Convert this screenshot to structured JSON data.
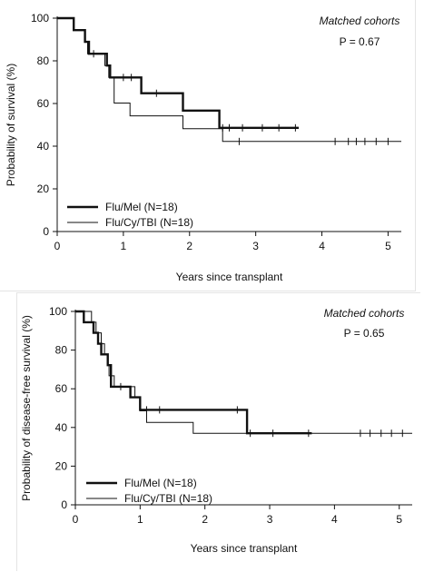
{
  "chart_data": [
    {
      "type": "line",
      "subtype": "kaplan-meier step curves",
      "annotation_title": "Matched cohorts",
      "p_value_text": "P = 0.67",
      "xlabel": "Years since transplant",
      "ylabel": "Probability of survival (%)",
      "xlim": [
        0,
        5.2
      ],
      "ylim": [
        0,
        100
      ],
      "x_ticks": [
        0,
        1,
        2,
        3,
        4,
        5
      ],
      "y_ticks": [
        0,
        20,
        40,
        60,
        80,
        100
      ],
      "grid": false,
      "legend_position": "bottom-left",
      "series": [
        {
          "name": "Flu/Mel (N=18)",
          "line_style": "thick",
          "steps": [
            [
              0,
              100
            ],
            [
              0.25,
              100
            ],
            [
              0.25,
              94.4
            ],
            [
              0.42,
              94.4
            ],
            [
              0.42,
              88.9
            ],
            [
              0.48,
              88.9
            ],
            [
              0.48,
              83.3
            ],
            [
              0.75,
              83.3
            ],
            [
              0.75,
              77.8
            ],
            [
              0.8,
              77.8
            ],
            [
              0.8,
              72.2
            ],
            [
              1.27,
              72.2
            ],
            [
              1.27,
              64.8
            ],
            [
              1.9,
              64.8
            ],
            [
              1.9,
              56.7
            ],
            [
              2.45,
              56.7
            ],
            [
              2.45,
              48.6
            ],
            [
              3.65,
              48.6
            ]
          ],
          "censor_x": [
            1.0,
            1.12,
            1.5,
            2.5,
            2.6,
            2.8,
            3.1,
            3.35,
            3.6
          ]
        },
        {
          "name": "Flu/Cy/TBI (N=18)",
          "line_style": "thin",
          "steps": [
            [
              0,
              100
            ],
            [
              0.25,
              100
            ],
            [
              0.25,
              94.4
            ],
            [
              0.42,
              94.4
            ],
            [
              0.42,
              88.9
            ],
            [
              0.46,
              88.9
            ],
            [
              0.46,
              83.3
            ],
            [
              0.72,
              83.3
            ],
            [
              0.72,
              77.8
            ],
            [
              0.78,
              77.8
            ],
            [
              0.78,
              72.2
            ],
            [
              0.86,
              72.2
            ],
            [
              0.86,
              60.2
            ],
            [
              1.1,
              60.2
            ],
            [
              1.1,
              54.2
            ],
            [
              1.9,
              54.2
            ],
            [
              1.9,
              48.2
            ],
            [
              2.5,
              48.2
            ],
            [
              2.5,
              42.2
            ],
            [
              5.2,
              42.2
            ]
          ],
          "censor_x": [
            0.55,
            2.75,
            4.2,
            4.4,
            4.52,
            4.65,
            4.82,
            5.0
          ]
        }
      ]
    },
    {
      "type": "line",
      "subtype": "kaplan-meier step curves",
      "annotation_title": "Matched cohorts",
      "p_value_text": "P = 0.65",
      "xlabel": "Years since transplant",
      "ylabel": "Probability of disease-free survival (%)",
      "xlim": [
        0,
        5.2
      ],
      "ylim": [
        0,
        100
      ],
      "x_ticks": [
        0,
        1,
        2,
        3,
        4,
        5
      ],
      "y_ticks": [
        0,
        20,
        40,
        60,
        80,
        100
      ],
      "grid": false,
      "legend_position": "bottom-left",
      "series": [
        {
          "name": "Flu/Mel (N=18)",
          "line_style": "thick",
          "steps": [
            [
              0,
              100
            ],
            [
              0.13,
              100
            ],
            [
              0.13,
              94.4
            ],
            [
              0.28,
              94.4
            ],
            [
              0.28,
              88.9
            ],
            [
              0.35,
              88.9
            ],
            [
              0.35,
              83.3
            ],
            [
              0.4,
              83.3
            ],
            [
              0.4,
              77.8
            ],
            [
              0.5,
              77.8
            ],
            [
              0.5,
              72.2
            ],
            [
              0.55,
              72.2
            ],
            [
              0.55,
              61.1
            ],
            [
              0.85,
              61.1
            ],
            [
              0.85,
              55.6
            ],
            [
              1.0,
              55.6
            ],
            [
              1.0,
              49.1
            ],
            [
              2.65,
              49.1
            ],
            [
              2.65,
              37.0
            ],
            [
              3.65,
              37.0
            ]
          ],
          "censor_x": [
            1.1,
            1.3,
            2.5,
            3.6
          ]
        },
        {
          "name": "Flu/Cy/TBI (N=18)",
          "line_style": "thin",
          "steps": [
            [
              0,
              100
            ],
            [
              0.25,
              100
            ],
            [
              0.25,
              94.4
            ],
            [
              0.32,
              94.4
            ],
            [
              0.32,
              88.9
            ],
            [
              0.4,
              88.9
            ],
            [
              0.4,
              83.3
            ],
            [
              0.45,
              83.3
            ],
            [
              0.45,
              77.8
            ],
            [
              0.5,
              77.8
            ],
            [
              0.5,
              72.2
            ],
            [
              0.52,
              72.2
            ],
            [
              0.52,
              66.7
            ],
            [
              0.6,
              66.7
            ],
            [
              0.6,
              61.1
            ],
            [
              0.92,
              61.1
            ],
            [
              0.92,
              55.6
            ],
            [
              1.0,
              55.6
            ],
            [
              1.0,
              48.6
            ],
            [
              1.1,
              48.6
            ],
            [
              1.1,
              42.6
            ],
            [
              1.82,
              42.6
            ],
            [
              1.82,
              37.0
            ],
            [
              5.2,
              37.0
            ]
          ],
          "censor_x": [
            0.7,
            2.7,
            3.05,
            4.4,
            4.55,
            4.72,
            4.88,
            5.05
          ]
        }
      ]
    }
  ]
}
